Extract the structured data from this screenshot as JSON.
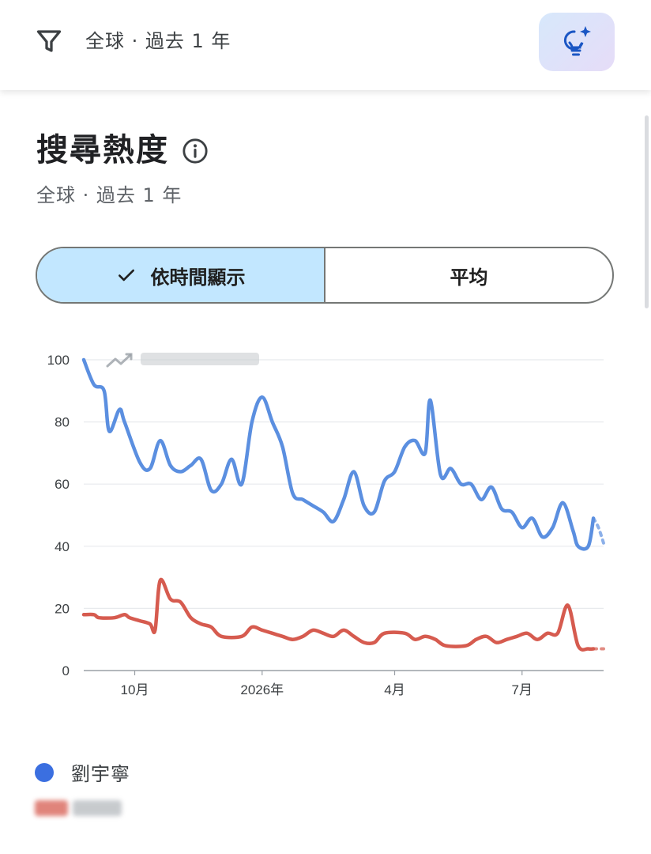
{
  "filter_bar": {
    "text": "全球 · 過去 1 年",
    "icons": {
      "filter": "filter-icon",
      "ai": "lightbulb-sparkle-icon"
    }
  },
  "card": {
    "title": "搜尋熱度",
    "subtitle": "全球 · 過去 1 年",
    "info_icon": "info-icon"
  },
  "toggle": {
    "options": [
      {
        "label": "依時間顯示",
        "selected": true
      },
      {
        "label": "平均",
        "selected": false
      }
    ]
  },
  "colors": {
    "series_1": "#5b8fe0",
    "series_2": "#d65b4f",
    "toggle_selected": "#c2e7ff",
    "grid": "#e8eaed"
  },
  "chart_data": {
    "type": "line",
    "ylim": [
      0,
      100
    ],
    "yticks": [
      "100",
      "80",
      "60",
      "40",
      "20",
      "0"
    ],
    "xticks": [
      {
        "label": "10月",
        "at": 10
      },
      {
        "label": "2026年",
        "at": 35
      },
      {
        "label": "4月",
        "at": 61
      },
      {
        "label": "7月",
        "at": 86
      }
    ],
    "x_count": 99,
    "partial_from": 97,
    "grid": true,
    "series": [
      {
        "name": "劉宇寧",
        "color": "#5b8fe0",
        "points": [
          [
            0,
            100
          ],
          [
            2,
            92
          ],
          [
            4,
            90
          ],
          [
            5,
            77
          ],
          [
            7,
            84
          ],
          [
            8,
            80
          ],
          [
            11,
            67
          ],
          [
            13,
            65
          ],
          [
            15,
            74
          ],
          [
            17,
            66
          ],
          [
            19,
            64
          ],
          [
            21,
            66
          ],
          [
            23,
            68
          ],
          [
            25,
            58
          ],
          [
            27,
            60
          ],
          [
            29,
            68
          ],
          [
            31,
            60
          ],
          [
            33,
            80
          ],
          [
            35,
            88
          ],
          [
            37,
            80
          ],
          [
            39,
            72
          ],
          [
            41,
            57
          ],
          [
            43,
            55
          ],
          [
            45,
            53
          ],
          [
            47,
            51
          ],
          [
            49,
            48
          ],
          [
            51,
            55
          ],
          [
            53,
            64
          ],
          [
            55,
            53
          ],
          [
            57,
            51
          ],
          [
            59,
            61
          ],
          [
            61,
            64
          ],
          [
            63,
            72
          ],
          [
            65,
            74
          ],
          [
            67,
            70
          ],
          [
            68,
            87
          ],
          [
            70,
            63
          ],
          [
            72,
            65
          ],
          [
            74,
            60
          ],
          [
            76,
            60
          ],
          [
            78,
            55
          ],
          [
            80,
            59
          ],
          [
            82,
            52
          ],
          [
            84,
            51
          ],
          [
            86,
            46
          ],
          [
            88,
            49
          ],
          [
            90,
            43
          ],
          [
            92,
            46
          ],
          [
            94,
            54
          ],
          [
            96,
            45
          ],
          [
            97,
            40
          ],
          [
            99,
            40
          ],
          [
            100,
            49
          ]
        ],
        "partial": [
          [
            100,
            49
          ],
          [
            101,
            46
          ],
          [
            102,
            41
          ]
        ]
      },
      {
        "name": "",
        "color": "#d65b4f",
        "points": [
          [
            0,
            18
          ],
          [
            2,
            18
          ],
          [
            3,
            17
          ],
          [
            6,
            17
          ],
          [
            8,
            18
          ],
          [
            9,
            17
          ],
          [
            11,
            16
          ],
          [
            13,
            15
          ],
          [
            14,
            13
          ],
          [
            15,
            29
          ],
          [
            17,
            23
          ],
          [
            19,
            22
          ],
          [
            21,
            17
          ],
          [
            23,
            15
          ],
          [
            25,
            14
          ],
          [
            27,
            11
          ],
          [
            31,
            11
          ],
          [
            33,
            14
          ],
          [
            35,
            13
          ],
          [
            37,
            12
          ],
          [
            39,
            11
          ],
          [
            41,
            10
          ],
          [
            43,
            11
          ],
          [
            45,
            13
          ],
          [
            47,
            12
          ],
          [
            49,
            11
          ],
          [
            51,
            13
          ],
          [
            53,
            11
          ],
          [
            55,
            9
          ],
          [
            57,
            9
          ],
          [
            59,
            12
          ],
          [
            63,
            12
          ],
          [
            65,
            10
          ],
          [
            67,
            11
          ],
          [
            69,
            10
          ],
          [
            71,
            8
          ],
          [
            75,
            8
          ],
          [
            77,
            10
          ],
          [
            79,
            11
          ],
          [
            81,
            9
          ],
          [
            83,
            10
          ],
          [
            85,
            11
          ],
          [
            87,
            12
          ],
          [
            89,
            10
          ],
          [
            91,
            12
          ],
          [
            93,
            12
          ],
          [
            95,
            21
          ],
          [
            97,
            8
          ],
          [
            99,
            7
          ],
          [
            100,
            7
          ]
        ],
        "partial": [
          [
            100,
            7
          ],
          [
            102,
            7
          ]
        ]
      }
    ]
  },
  "legend": [
    {
      "label": "劉宇寧",
      "color": "#3b6fe0"
    },
    {
      "label": "",
      "color": "#d65b4f"
    }
  ]
}
